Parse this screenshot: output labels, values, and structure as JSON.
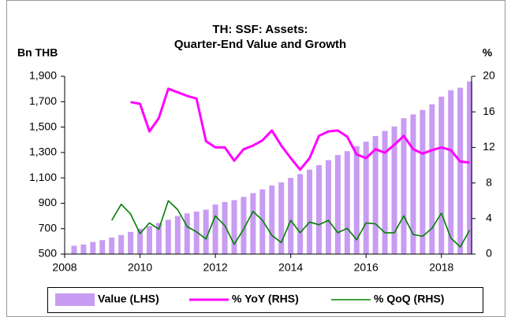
{
  "chart_data": {
    "type": "combo",
    "title": [
      "TH: SSF: Assets:",
      "Quarter-End Value and Growth"
    ],
    "ylabel": "Bn THB",
    "y2label": "%",
    "x": [
      2008.25,
      2008.5,
      2008.75,
      2009,
      2009.25,
      2009.5,
      2009.75,
      2010,
      2010.25,
      2010.5,
      2010.75,
      2011,
      2011.25,
      2011.5,
      2011.75,
      2012,
      2012.25,
      2012.5,
      2012.75,
      2013,
      2013.25,
      2013.5,
      2013.75,
      2014,
      2014.25,
      2014.5,
      2014.75,
      2015,
      2015.25,
      2015.5,
      2015.75,
      2016,
      2016.25,
      2016.5,
      2016.75,
      2017,
      2017.25,
      2017.5,
      2017.75,
      2018,
      2018.25,
      2018.5,
      2018.75
    ],
    "xlim": [
      2008,
      2018.8
    ],
    "xticks": [
      2008,
      2010,
      2012,
      2014,
      2016,
      2018
    ],
    "ylim": [
      500,
      1900
    ],
    "yticks": [
      500,
      700,
      900,
      {
        "value": 1100,
        "label": "1,100"
      },
      {
        "value": 1300,
        "label": "1,300"
      },
      {
        "value": 1500,
        "label": "1,500"
      },
      {
        "value": 1700,
        "label": "1,700"
      },
      {
        "value": 1900,
        "label": "1,900"
      }
    ],
    "y2lim": [
      0,
      20
    ],
    "y2ticks": [
      0,
      4,
      8,
      12,
      16,
      20
    ],
    "legend": "bottom",
    "series": [
      {
        "name": "Value (LHS)",
        "type": "bar",
        "color": "#c89cf2",
        "values": [
          565,
          575,
          595,
          610,
          630,
          650,
          675,
          700,
          720,
          745,
          770,
          800,
          820,
          835,
          850,
          890,
          910,
          925,
          950,
          980,
          1010,
          1040,
          1065,
          1100,
          1130,
          1165,
          1200,
          1240,
          1280,
          1310,
          1350,
          1385,
          1430,
          1470,
          1505,
          1570,
          1600,
          1635,
          1680,
          1740,
          1790,
          1810,
          1860
        ]
      },
      {
        "name": "% YoY (RHS)",
        "type": "line",
        "axis": "y2",
        "color": "#ff00ff",
        "values": [
          null,
          null,
          null,
          null,
          null,
          null,
          17.1,
          16.9,
          13.8,
          15.3,
          18.6,
          18.2,
          17.8,
          17.5,
          12.7,
          12.0,
          12.0,
          10.5,
          11.8,
          12.2,
          12.8,
          13.9,
          12.2,
          10.8,
          9.5,
          10.8,
          13.3,
          13.8,
          13.9,
          13.2,
          11.2,
          10.8,
          11.8,
          11.4,
          12.3,
          13.3,
          11.8,
          11.3,
          11.7,
          12.0,
          11.7,
          10.4,
          10.3
        ]
      },
      {
        "name": "% QoQ (RHS)",
        "type": "line",
        "axis": "y2",
        "color": "#008000",
        "values": [
          null,
          null,
          null,
          null,
          3.8,
          5.6,
          4.5,
          2.3,
          3.5,
          2.8,
          6.0,
          5.0,
          3.1,
          2.5,
          1.7,
          4.3,
          3.2,
          1.1,
          2.8,
          4.8,
          3.8,
          2.1,
          1.3,
          3.8,
          2.4,
          3.6,
          3.3,
          3.8,
          2.4,
          2.9,
          1.6,
          3.5,
          3.4,
          2.4,
          2.4,
          4.3,
          2.2,
          2.0,
          2.9,
          4.6,
          1.8,
          0.8,
          2.7
        ]
      }
    ]
  }
}
